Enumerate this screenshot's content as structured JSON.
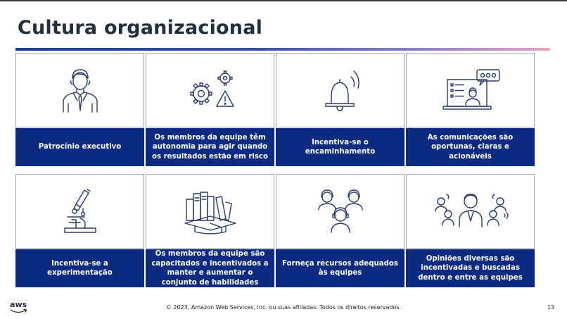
{
  "slide": {
    "title": "Cultura organizacional",
    "footer": "© 2023, Amazon Web Services, Inc. ou suas afiliadas. Todos os direitos reservados.",
    "page_number": "13",
    "logo_text": "aws"
  },
  "cards": [
    {
      "caption": "Patrocínio executivo",
      "icon": "executive-person-icon"
    },
    {
      "caption": "Os membros da equipe têm autonomia para agir quando os resultados estão em risco",
      "icon": "gears-warning-icon"
    },
    {
      "caption": "Incentiva-se o encaminhamento",
      "icon": "bell-icon"
    },
    {
      "caption": "As comunicações são oportunas, claras e acionáveis",
      "icon": "video-call-icon"
    },
    {
      "caption": "Incentiva-se a experimentação",
      "icon": "microscope-icon"
    },
    {
      "caption": "Os membros da equipe são capacitados e incentivados a manter e aumentar o conjunto de habilidades",
      "icon": "books-graduation-icon"
    },
    {
      "caption": "Forneça recursos adequados às equipes",
      "icon": "headset-team-icon"
    },
    {
      "caption": "Opiniões diversas são incentivadas e buscadas dentro e entre as equipes",
      "icon": "diverse-opinions-icon"
    }
  ],
  "colors": {
    "caption_bg": "#0b2a82",
    "title": "#232f3e",
    "icon_stroke": "#2b3a6b"
  }
}
